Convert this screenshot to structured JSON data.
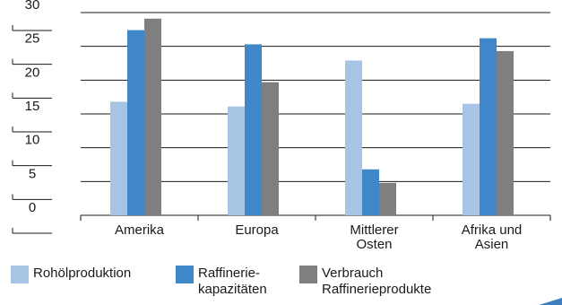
{
  "chart_data": {
    "type": "bar",
    "categories": [
      [
        "Amerika"
      ],
      [
        "Europa"
      ],
      [
        "Mittlerer",
        "Osten"
      ],
      [
        "Afrika und",
        "Asien"
      ]
    ],
    "series": [
      {
        "name": "Rohölproduktion",
        "values": [
          16.8,
          16.1,
          22.9,
          16.5
        ],
        "color": "#a8c4e5"
      },
      {
        "name": "Raffinerie-kapazitäten",
        "values": [
          27.4,
          25.3,
          6.8,
          26.2
        ],
        "color": "#3f87c8"
      },
      {
        "name": "Verbrauch Raffinerieprodukte",
        "values": [
          29.1,
          19.7,
          4.8,
          24.3
        ],
        "color": "#7f7f7f"
      }
    ],
    "yticks": [
      0,
      5,
      10,
      15,
      20,
      25,
      30
    ],
    "ylim": [
      0,
      30
    ],
    "grid": true,
    "legend_position": "bottom"
  },
  "legend": [
    {
      "lines": [
        "Rohölproduktion"
      ],
      "color": "#a8c4e5"
    },
    {
      "lines": [
        "Raffinerie-",
        "kapazitäten"
      ],
      "color": "#3f87c8"
    },
    {
      "lines": [
        "Verbrauch",
        "Raffinerieprodukte"
      ],
      "color": "#7f7f7f"
    }
  ],
  "corner_mark_color": "#3f7fbf"
}
